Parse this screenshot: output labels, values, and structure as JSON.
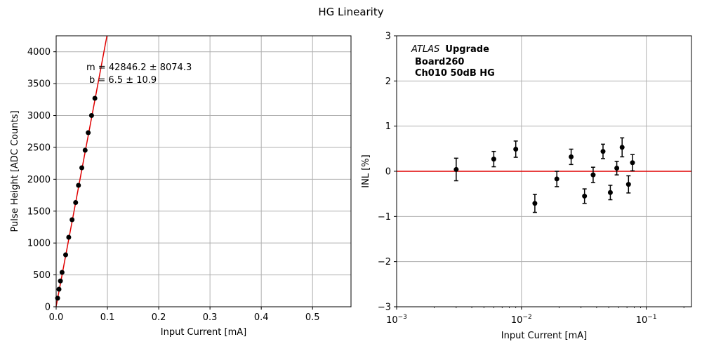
{
  "figure_title": "HG Linearity",
  "colors": {
    "fit_line": "#e00000",
    "markers": "#000000",
    "grid": "#b0b0b0",
    "reference_line": "#e00000"
  },
  "chart_data": [
    {
      "type": "scatter",
      "id": "linearity",
      "xlabel": "Input Current [mA]",
      "ylabel": "Pulse Height [ADC Counts]",
      "xlim": [
        0,
        0.575
      ],
      "ylim": [
        0,
        4250
      ],
      "xticks": [
        "0.0",
        "0.1",
        "0.2",
        "0.3",
        "0.4",
        "0.5"
      ],
      "yticks": [
        "0",
        "500",
        "1000",
        "1500",
        "2000",
        "2500",
        "3000",
        "3500",
        "4000"
      ],
      "grid": true,
      "annotation": {
        "line1": "m = 42846.2 ± 8074.3",
        "line2": "b = 6.5 ± 10.9"
      },
      "fit": {
        "slope": 42846.2,
        "intercept": 6.5
      },
      "x": [
        0.0028,
        0.0055,
        0.0083,
        0.0115,
        0.0185,
        0.0245,
        0.031,
        0.038,
        0.0435,
        0.05,
        0.0565,
        0.0625,
        0.069,
        0.0755
      ],
      "y": [
        135,
        275,
        405,
        540,
        815,
        1090,
        1365,
        1635,
        1905,
        2180,
        2455,
        2730,
        3000,
        3270
      ]
    },
    {
      "type": "scatter",
      "id": "inl",
      "xlabel": "Input Current [mA]",
      "ylabel": "INL [%]",
      "xscale": "log",
      "xlim": [
        0.001,
        0.23
      ],
      "ylim": [
        -3,
        3
      ],
      "xticks": [
        {
          "base": "10",
          "exp": "−3"
        },
        {
          "base": "10",
          "exp": "−2"
        },
        {
          "base": "10",
          "exp": "−1"
        }
      ],
      "yticks": [
        "3",
        "2",
        "1",
        "0",
        "−1",
        "−2",
        "−3"
      ],
      "grid": true,
      "reference_y": 0,
      "annotation": {
        "italic": "ATLAS",
        "bold1": "Upgrade",
        "line2": "Board260",
        "line3": "Ch010 50dB HG"
      },
      "x": [
        0.003,
        0.006,
        0.009,
        0.0128,
        0.0192,
        0.025,
        0.032,
        0.0375,
        0.045,
        0.0515,
        0.058,
        0.064,
        0.072,
        0.0775
      ],
      "y": [
        0.04,
        0.27,
        0.49,
        -0.71,
        -0.17,
        0.32,
        -0.55,
        -0.08,
        0.44,
        -0.47,
        0.07,
        0.53,
        -0.29,
        0.19
      ],
      "yerr": [
        0.25,
        0.17,
        0.18,
        0.2,
        0.17,
        0.17,
        0.16,
        0.17,
        0.16,
        0.16,
        0.15,
        0.21,
        0.19,
        0.18
      ]
    }
  ]
}
